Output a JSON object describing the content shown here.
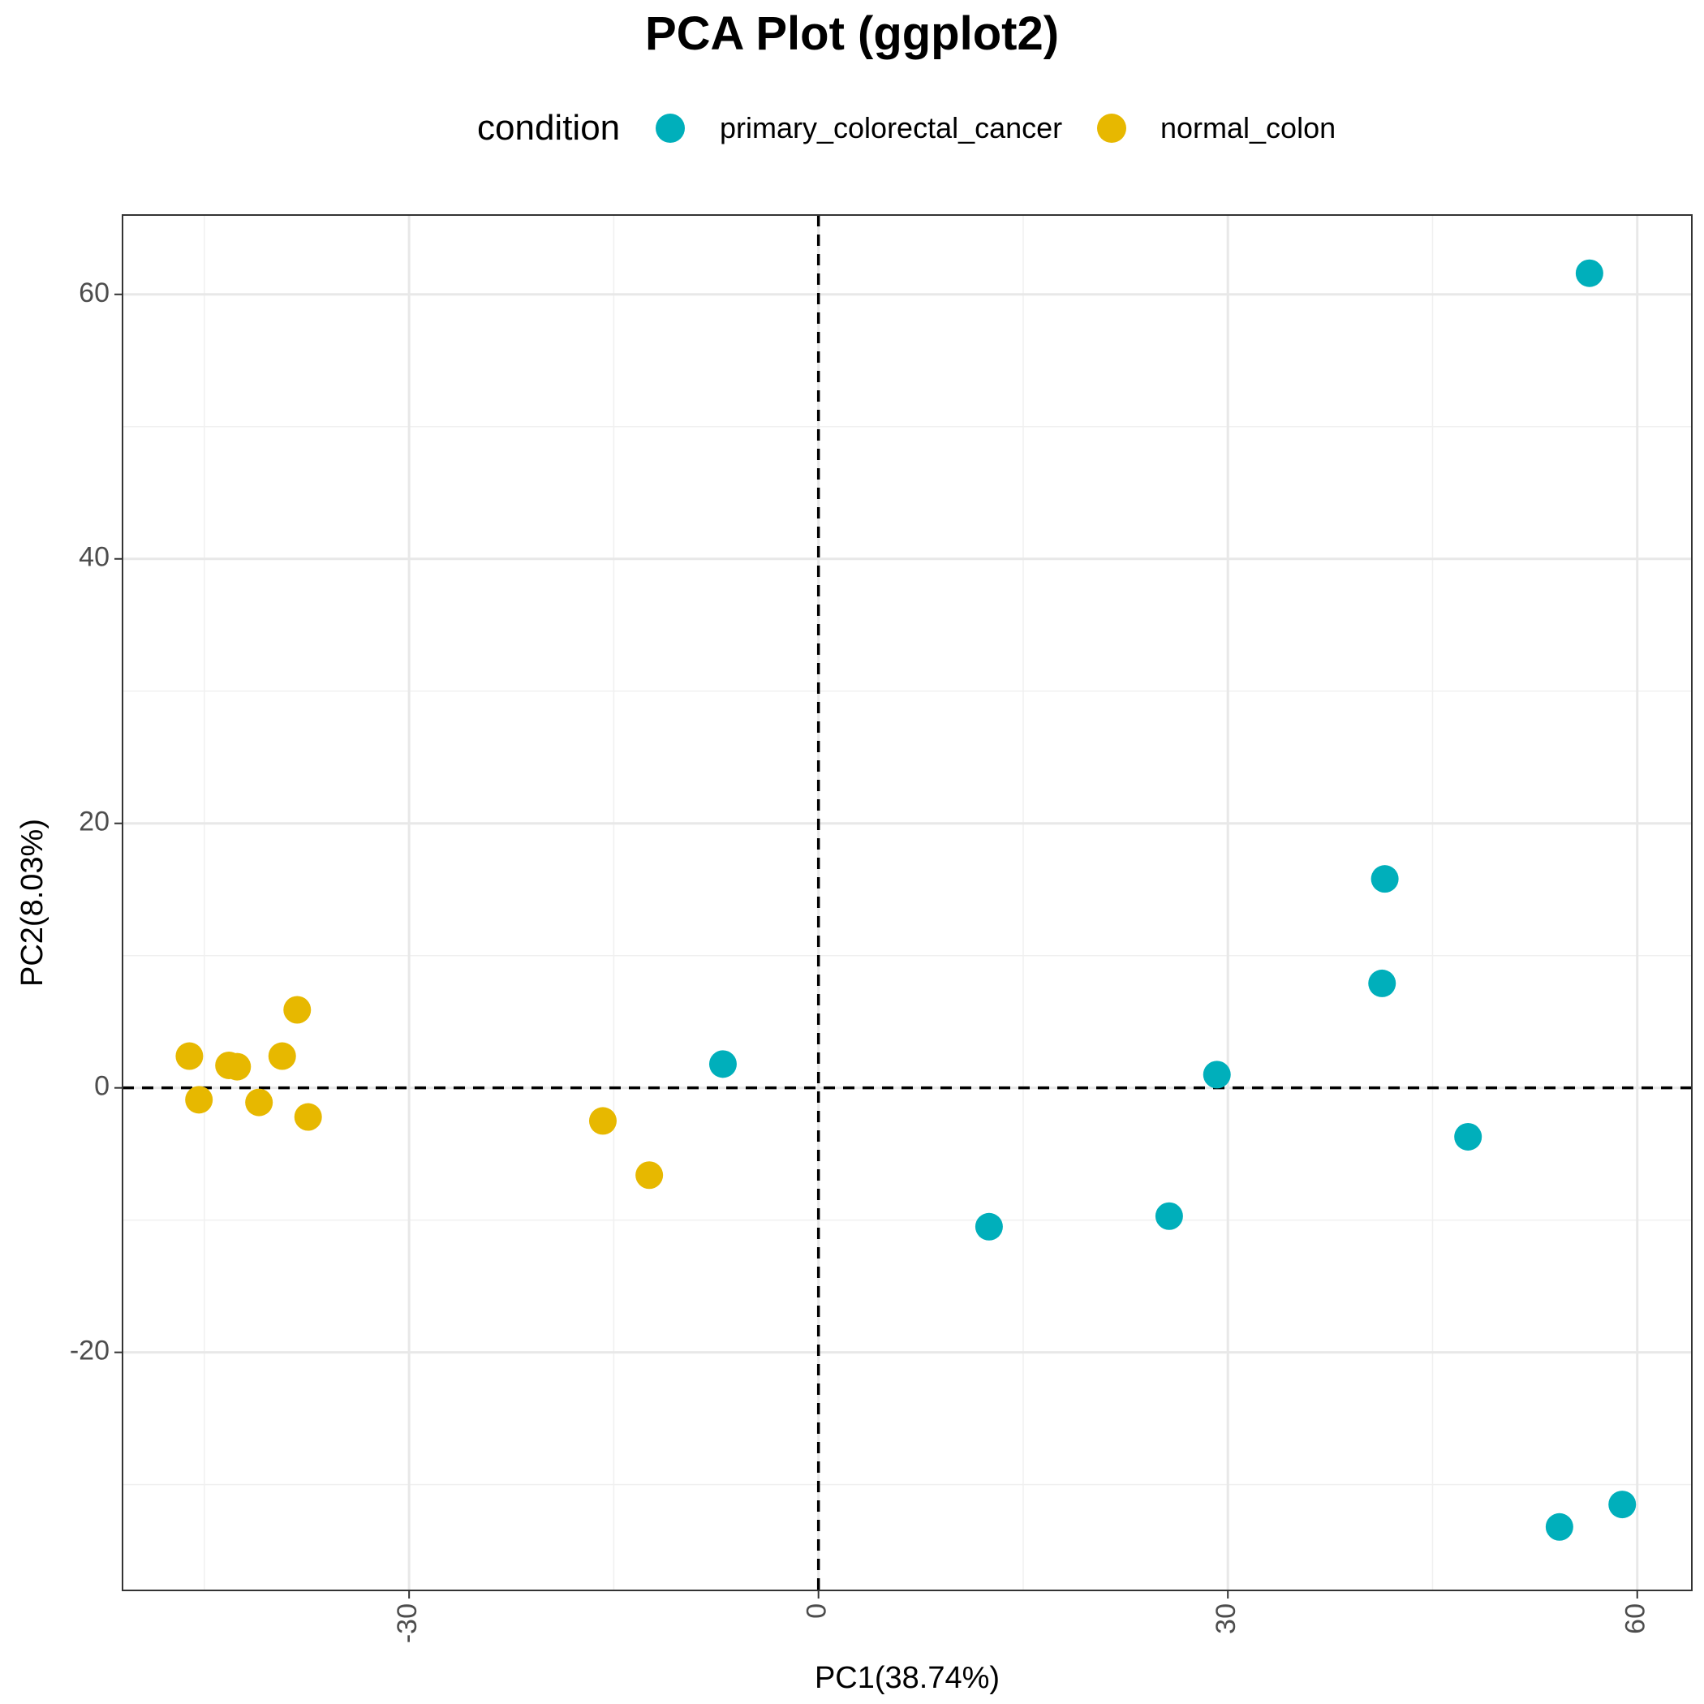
{
  "chart_data": {
    "type": "scatter",
    "title": "PCA Plot (ggplot2)",
    "xlabel": "PC1(38.74%)",
    "ylabel": "PC2(8.03%)",
    "xlim": [
      -51,
      64
    ],
    "ylim": [
      -38,
      66
    ],
    "xticks": [
      -30,
      0,
      30,
      60
    ],
    "yticks": [
      -20,
      0,
      20,
      40,
      60
    ],
    "grid": true,
    "reference_lines": {
      "x": 0,
      "y": 0,
      "style": "dashed"
    },
    "legend": {
      "title": "condition",
      "position": "top",
      "entries": [
        "primary_colorectal_cancer",
        "normal_colon"
      ]
    },
    "series": [
      {
        "name": "primary_colorectal_cancer",
        "color": "#00AFBB",
        "points": [
          [
            -7,
            1.8
          ],
          [
            12.5,
            -10.5
          ],
          [
            25.7,
            -9.7
          ],
          [
            29.2,
            1.0
          ],
          [
            41.3,
            7.9
          ],
          [
            41.5,
            15.8
          ],
          [
            47.6,
            -3.7
          ],
          [
            54.3,
            -33.2
          ],
          [
            56.5,
            61.6
          ],
          [
            58.9,
            -31.5
          ]
        ]
      },
      {
        "name": "normal_colon",
        "color": "#E7B800",
        "points": [
          [
            -46.1,
            2.4
          ],
          [
            -45.4,
            -0.9
          ],
          [
            -43.2,
            1.7
          ],
          [
            -42.6,
            1.6
          ],
          [
            -41.0,
            -1.1
          ],
          [
            -39.3,
            2.4
          ],
          [
            -38.2,
            5.9
          ],
          [
            -37.4,
            -2.2
          ],
          [
            -15.8,
            -2.5
          ],
          [
            -12.4,
            -6.6
          ]
        ]
      }
    ]
  }
}
